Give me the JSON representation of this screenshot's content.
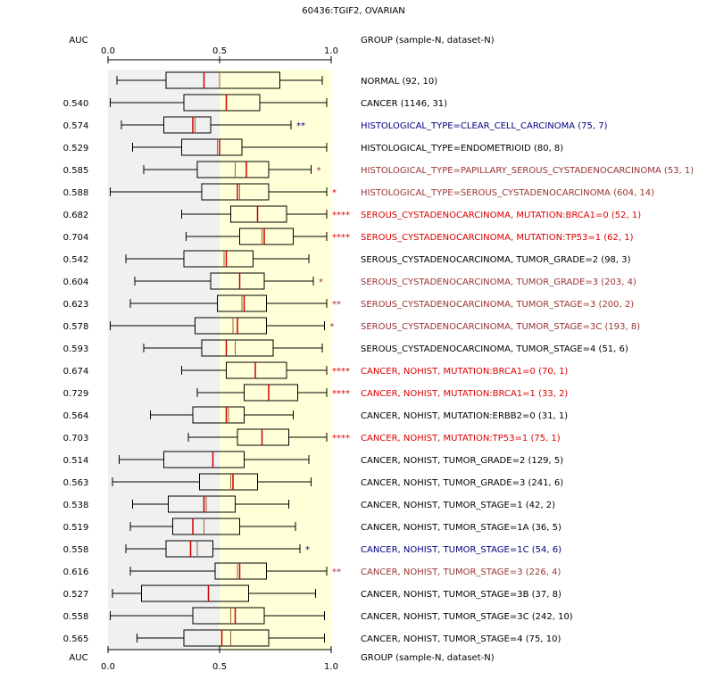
{
  "chart_data": {
    "type": "boxplot",
    "title": "60436:TGIF2, OVARIAN",
    "header": {
      "auc_label": "AUC",
      "group_label": "GROUP (sample-N, dataset-N)"
    },
    "xlim": [
      0,
      1
    ],
    "x_ticks": [
      "0.0",
      "0.5",
      "1.0"
    ],
    "colors": {
      "left_band": "#f0f0f0",
      "right_band": "#ffffd8",
      "box_fill": "#ffffd8",
      "median": "#cc0000",
      "mean": "#996633",
      "label_black": "#000000",
      "label_red": "#dd0000",
      "label_brown": "#993333",
      "label_blue": "#000080"
    },
    "groups": [
      {
        "auc": "",
        "label": "NORMAL (92, 10)",
        "label_color": "black",
        "stars": "",
        "star_color": "black",
        "whisker_low": 0.04,
        "q1": 0.26,
        "median": 0.43,
        "mean": 0.5,
        "q3": 0.77,
        "whisker_high": 0.96
      },
      {
        "auc": "0.540",
        "label": "CANCER (1146, 31)",
        "label_color": "black",
        "stars": "",
        "star_color": "black",
        "whisker_low": 0.01,
        "q1": 0.34,
        "median": 0.53,
        "mean": 0.53,
        "q3": 0.68,
        "whisker_high": 0.98
      },
      {
        "auc": "0.574",
        "label": "HISTOLOGICAL_TYPE=CLEAR_CELL_CARCINOMA (75, 7)",
        "label_color": "blue",
        "stars": "**",
        "star_color": "blue",
        "whisker_low": 0.06,
        "q1": 0.25,
        "median": 0.38,
        "mean": 0.39,
        "q3": 0.46,
        "whisker_high": 0.82
      },
      {
        "auc": "0.529",
        "label": "HISTOLOGICAL_TYPE=ENDOMETRIOID (80, 8)",
        "label_color": "black",
        "stars": "",
        "star_color": "black",
        "whisker_low": 0.11,
        "q1": 0.33,
        "median": 0.5,
        "mean": 0.49,
        "q3": 0.6,
        "whisker_high": 0.98
      },
      {
        "auc": "0.585",
        "label": "HISTOLOGICAL_TYPE=PAPILLARY_SEROUS_CYSTADENOCARCINOMA (53, 1)",
        "label_color": "brown",
        "stars": "*",
        "star_color": "brown",
        "whisker_low": 0.16,
        "q1": 0.4,
        "median": 0.62,
        "mean": 0.57,
        "q3": 0.72,
        "whisker_high": 0.91
      },
      {
        "auc": "0.588",
        "label": "HISTOLOGICAL_TYPE=SEROUS_CYSTADENOCARCINOMA (604, 14)",
        "label_color": "brown",
        "stars": "*",
        "star_color": "red",
        "whisker_low": 0.01,
        "q1": 0.42,
        "median": 0.58,
        "mean": 0.59,
        "q3": 0.72,
        "whisker_high": 0.98
      },
      {
        "auc": "0.682",
        "label": "SEROUS_CYSTADENOCARCINOMA, MUTATION:BRCA1=0 (52, 1)",
        "label_color": "red",
        "stars": "****",
        "star_color": "red",
        "whisker_low": 0.33,
        "q1": 0.55,
        "median": 0.67,
        "mean": 0.67,
        "q3": 0.8,
        "whisker_high": 0.98
      },
      {
        "auc": "0.704",
        "label": "SEROUS_CYSTADENOCARCINOMA, MUTATION:TP53=1 (62, 1)",
        "label_color": "red",
        "stars": "****",
        "star_color": "red",
        "whisker_low": 0.35,
        "q1": 0.59,
        "median": 0.7,
        "mean": 0.69,
        "q3": 0.83,
        "whisker_high": 0.98
      },
      {
        "auc": "0.542",
        "label": "SEROUS_CYSTADENOCARCINOMA, TUMOR_GRADE=2 (98, 3)",
        "label_color": "black",
        "stars": "",
        "star_color": "black",
        "whisker_low": 0.08,
        "q1": 0.34,
        "median": 0.53,
        "mean": 0.52,
        "q3": 0.65,
        "whisker_high": 0.9
      },
      {
        "auc": "0.604",
        "label": "SEROUS_CYSTADENOCARCINOMA, TUMOR_GRADE=3 (203, 4)",
        "label_color": "brown",
        "stars": "*",
        "star_color": "brown",
        "whisker_low": 0.12,
        "q1": 0.46,
        "median": 0.59,
        "mean": 0.59,
        "q3": 0.7,
        "whisker_high": 0.92
      },
      {
        "auc": "0.623",
        "label": "SEROUS_CYSTADENOCARCINOMA, TUMOR_STAGE=3 (200, 2)",
        "label_color": "brown",
        "stars": "**",
        "star_color": "brown",
        "whisker_low": 0.1,
        "q1": 0.49,
        "median": 0.61,
        "mean": 0.6,
        "q3": 0.71,
        "whisker_high": 0.98
      },
      {
        "auc": "0.578",
        "label": "SEROUS_CYSTADENOCARCINOMA, TUMOR_STAGE=3C (193, 8)",
        "label_color": "brown",
        "stars": "*",
        "star_color": "brown",
        "whisker_low": 0.01,
        "q1": 0.39,
        "median": 0.58,
        "mean": 0.56,
        "q3": 0.71,
        "whisker_high": 0.97
      },
      {
        "auc": "0.593",
        "label": "SEROUS_CYSTADENOCARCINOMA, TUMOR_STAGE=4 (51, 6)",
        "label_color": "black",
        "stars": "",
        "star_color": "black",
        "whisker_low": 0.16,
        "q1": 0.42,
        "median": 0.53,
        "mean": 0.57,
        "q3": 0.74,
        "whisker_high": 0.96
      },
      {
        "auc": "0.674",
        "label": "CANCER, NOHIST, MUTATION:BRCA1=0 (70, 1)",
        "label_color": "red",
        "stars": "****",
        "star_color": "red",
        "whisker_low": 0.33,
        "q1": 0.53,
        "median": 0.66,
        "mean": 0.66,
        "q3": 0.8,
        "whisker_high": 0.98
      },
      {
        "auc": "0.729",
        "label": "CANCER, NOHIST, MUTATION:BRCA1=1 (33, 2)",
        "label_color": "red",
        "stars": "****",
        "star_color": "red",
        "whisker_low": 0.4,
        "q1": 0.61,
        "median": 0.72,
        "mean": 0.72,
        "q3": 0.85,
        "whisker_high": 0.98
      },
      {
        "auc": "0.564",
        "label": "CANCER, NOHIST, MUTATION:ERBB2=0 (31, 1)",
        "label_color": "black",
        "stars": "",
        "star_color": "black",
        "whisker_low": 0.19,
        "q1": 0.38,
        "median": 0.53,
        "mean": 0.54,
        "q3": 0.61,
        "whisker_high": 0.83
      },
      {
        "auc": "0.703",
        "label": "CANCER, NOHIST, MUTATION:TP53=1 (75, 1)",
        "label_color": "red",
        "stars": "****",
        "star_color": "red",
        "whisker_low": 0.36,
        "q1": 0.58,
        "median": 0.69,
        "mean": 0.69,
        "q3": 0.81,
        "whisker_high": 0.98
      },
      {
        "auc": "0.514",
        "label": "CANCER, NOHIST, TUMOR_GRADE=2 (129, 5)",
        "label_color": "black",
        "stars": "",
        "star_color": "black",
        "whisker_low": 0.05,
        "q1": 0.25,
        "median": 0.47,
        "mean": 0.47,
        "q3": 0.61,
        "whisker_high": 0.9
      },
      {
        "auc": "0.563",
        "label": "CANCER, NOHIST, TUMOR_GRADE=3 (241, 6)",
        "label_color": "black",
        "stars": "",
        "star_color": "black",
        "whisker_low": 0.02,
        "q1": 0.41,
        "median": 0.56,
        "mean": 0.55,
        "q3": 0.67,
        "whisker_high": 0.91
      },
      {
        "auc": "0.538",
        "label": "CANCER, NOHIST, TUMOR_STAGE=1 (42, 2)",
        "label_color": "black",
        "stars": "",
        "star_color": "black",
        "whisker_low": 0.11,
        "q1": 0.27,
        "median": 0.43,
        "mean": 0.44,
        "q3": 0.57,
        "whisker_high": 0.81
      },
      {
        "auc": "0.519",
        "label": "CANCER, NOHIST, TUMOR_STAGE=1A (36, 5)",
        "label_color": "black",
        "stars": "",
        "star_color": "black",
        "whisker_low": 0.1,
        "q1": 0.29,
        "median": 0.38,
        "mean": 0.43,
        "q3": 0.59,
        "whisker_high": 0.84
      },
      {
        "auc": "0.558",
        "label": "CANCER, NOHIST, TUMOR_STAGE=1C (54, 6)",
        "label_color": "blue",
        "stars": "*",
        "star_color": "blue",
        "whisker_low": 0.08,
        "q1": 0.26,
        "median": 0.37,
        "mean": 0.4,
        "q3": 0.47,
        "whisker_high": 0.86
      },
      {
        "auc": "0.616",
        "label": "CANCER, NOHIST, TUMOR_STAGE=3 (226, 4)",
        "label_color": "brown",
        "stars": "**",
        "star_color": "brown",
        "whisker_low": 0.1,
        "q1": 0.48,
        "median": 0.59,
        "mean": 0.58,
        "q3": 0.71,
        "whisker_high": 0.98
      },
      {
        "auc": "0.527",
        "label": "CANCER, NOHIST, TUMOR_STAGE=3B (37, 8)",
        "label_color": "black",
        "stars": "",
        "star_color": "black",
        "whisker_low": 0.02,
        "q1": 0.15,
        "median": 0.45,
        "mean": 0.45,
        "q3": 0.63,
        "whisker_high": 0.93
      },
      {
        "auc": "0.558",
        "label": "CANCER, NOHIST, TUMOR_STAGE=3C (242, 10)",
        "label_color": "black",
        "stars": "",
        "star_color": "black",
        "whisker_low": 0.01,
        "q1": 0.38,
        "median": 0.57,
        "mean": 0.55,
        "q3": 0.7,
        "whisker_high": 0.97
      },
      {
        "auc": "0.565",
        "label": "CANCER, NOHIST, TUMOR_STAGE=4 (75, 10)",
        "label_color": "black",
        "stars": "",
        "star_color": "black",
        "whisker_low": 0.13,
        "q1": 0.34,
        "median": 0.51,
        "mean": 0.55,
        "q3": 0.72,
        "whisker_high": 0.97
      }
    ]
  }
}
